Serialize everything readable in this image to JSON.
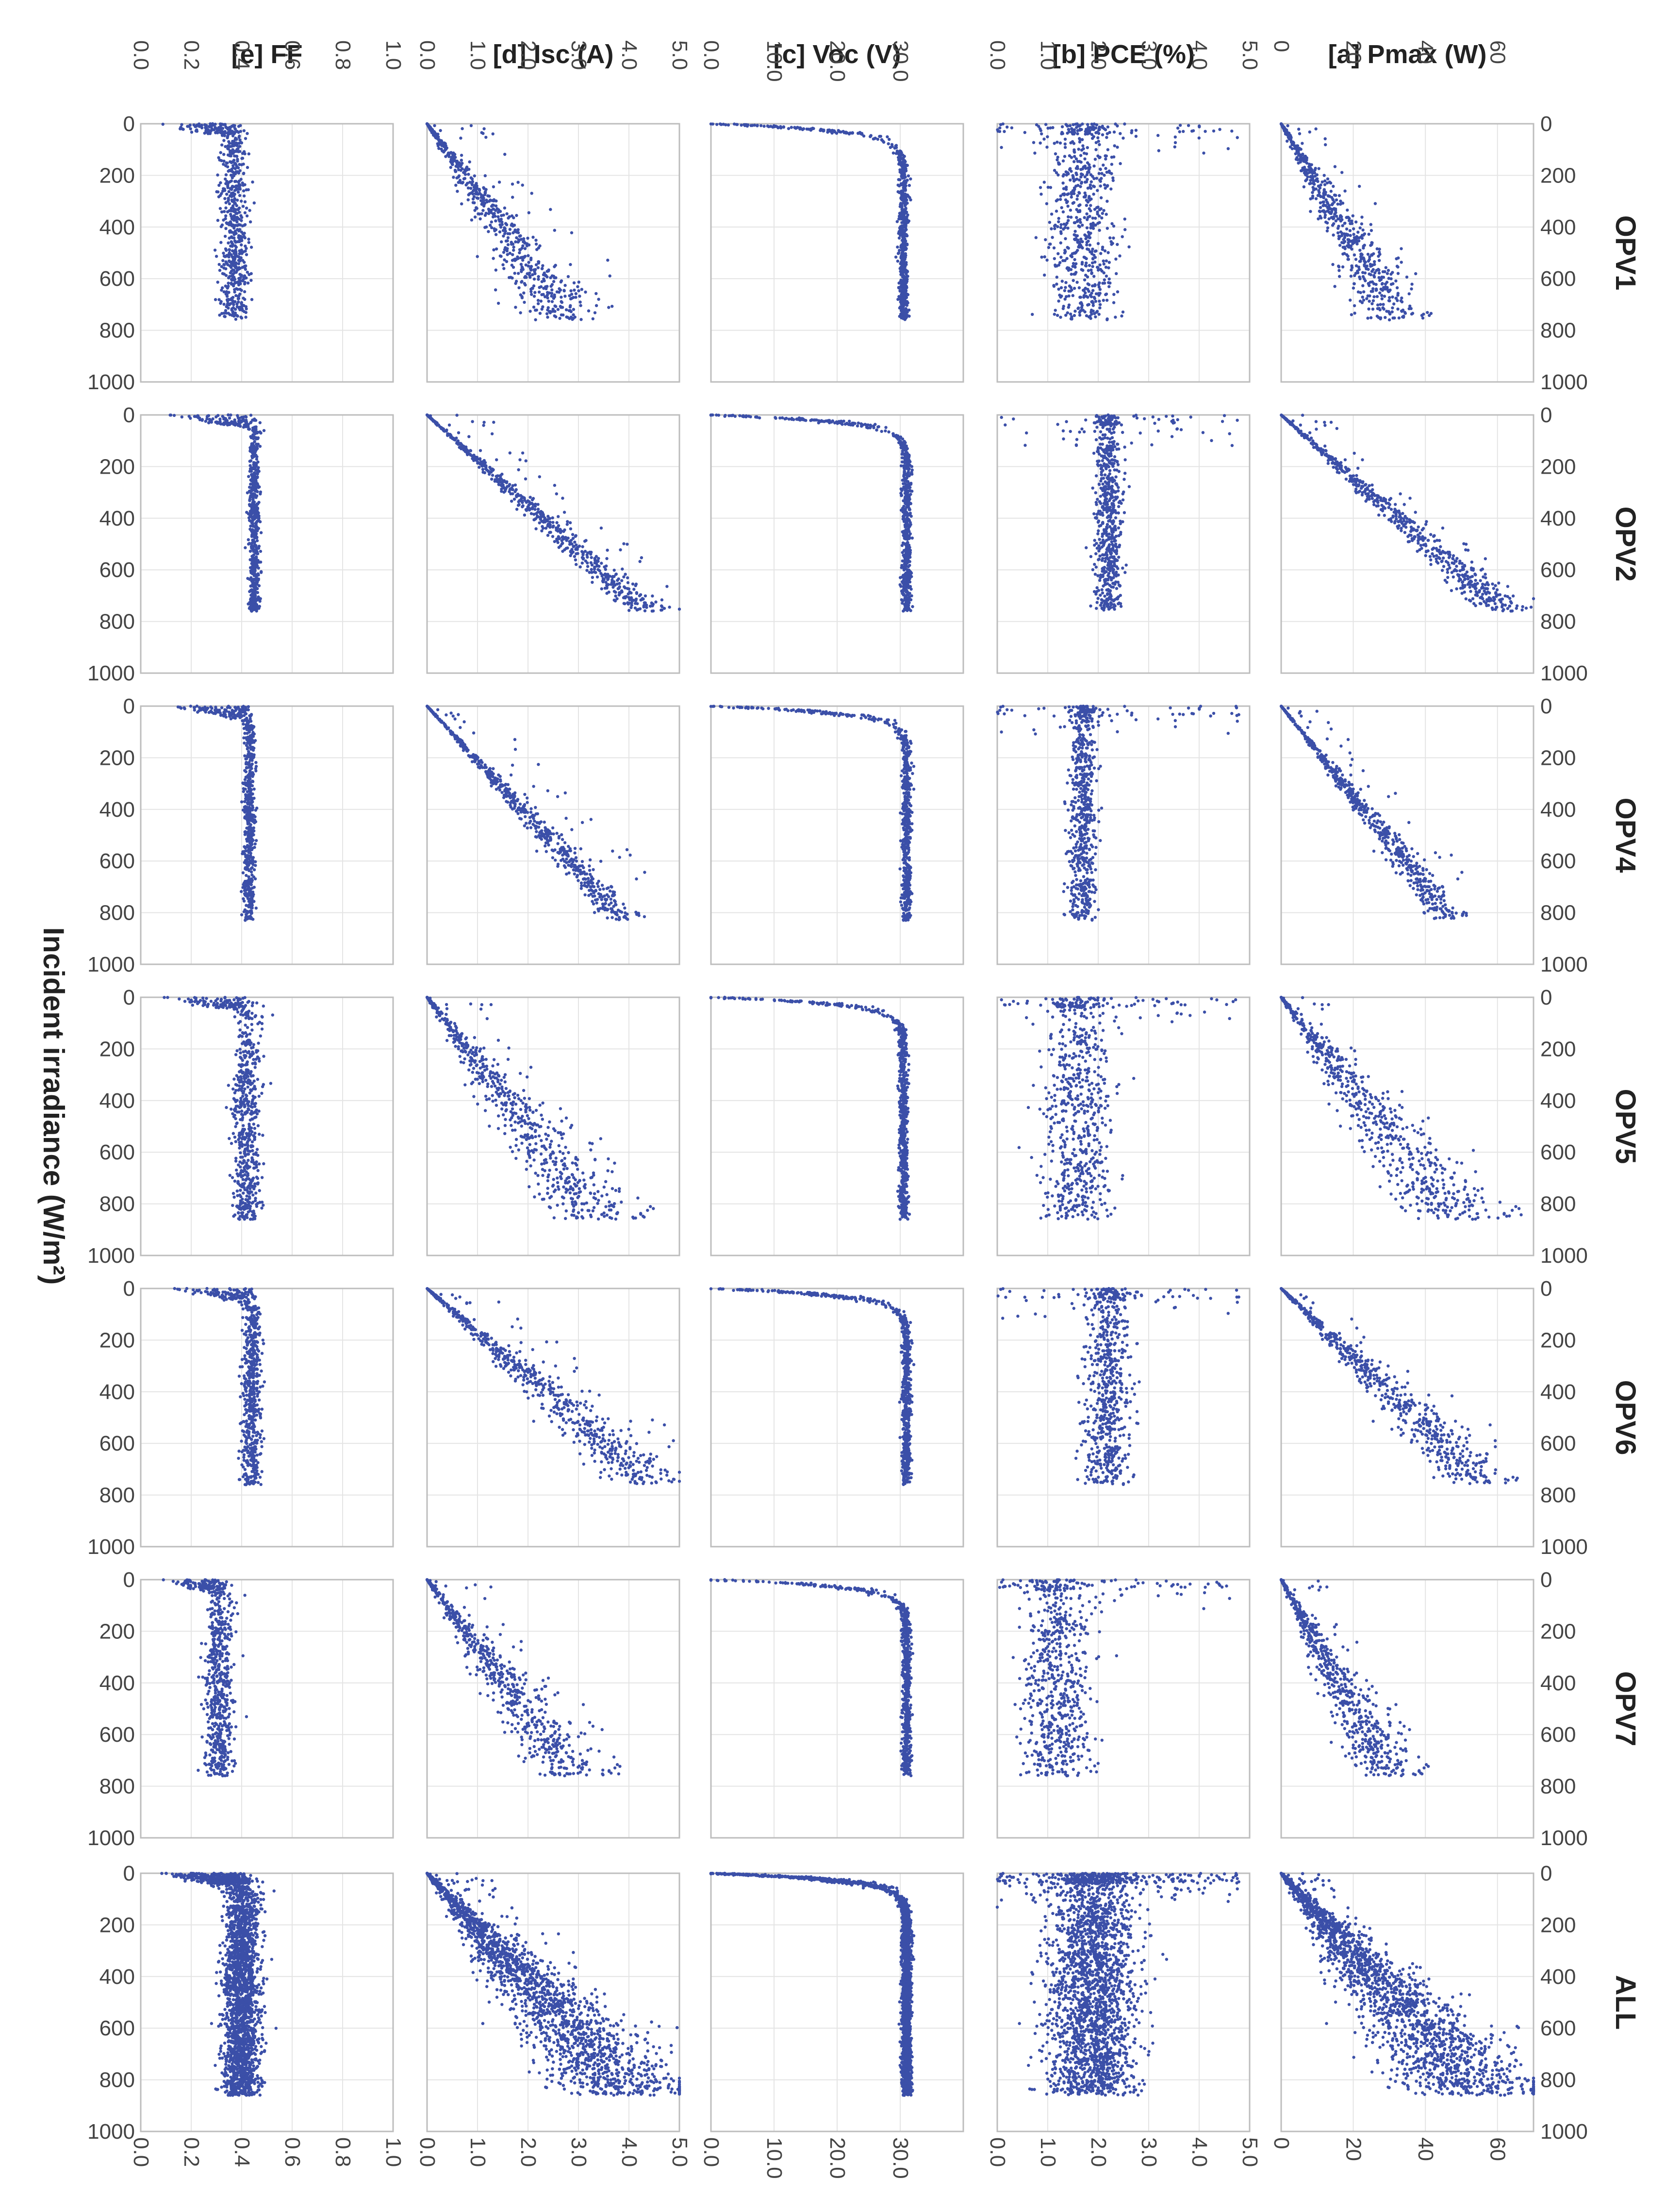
{
  "figure": {
    "y_axis_label": "Incident irradiance (W/m²)",
    "colors": {
      "points": "#3b4fa8",
      "grid": "#e4e4e4",
      "frame": "#bdbdbd"
    }
  },
  "chart_data": {
    "type": "scatter",
    "layout": "grid: rows = modules, columns = parameters; irradiance axis runs downward from 0 to 1000",
    "rows": [
      "OPV1",
      "OPV2",
      "OPV4",
      "OPV5",
      "OPV6",
      "OPV7",
      "ALL"
    ],
    "irradiance_axis": {
      "label": "Incident irradiance (W/m²)",
      "range": [
        0,
        1000
      ],
      "ticks": [
        "0",
        "200",
        "400",
        "600",
        "800",
        "1000"
      ]
    },
    "columns": [
      {
        "key": "ff",
        "title": "[e] FF",
        "range": [
          0,
          1
        ],
        "ticks": [
          "0.0",
          "0.2",
          "0.4",
          "0.6",
          "0.8",
          "1.0"
        ]
      },
      {
        "key": "isc",
        "title": "[d] Isc (A)",
        "range": [
          0,
          5
        ],
        "ticks": [
          "0.0",
          "1.0",
          "2.0",
          "3.0",
          "4.0",
          "5.0"
        ]
      },
      {
        "key": "voc",
        "title": "[c] Voc (V)",
        "range": [
          0,
          40
        ],
        "ticks": [
          "0.0",
          "10.0",
          "20.0",
          "30.0"
        ]
      },
      {
        "key": "pce",
        "title": "[b] PCE (%)",
        "range": [
          0,
          5
        ],
        "ticks": [
          "0.0",
          "1.0",
          "2.0",
          "3.0",
          "4.0",
          "5.0"
        ]
      },
      {
        "key": "pmax",
        "title": "[a] Pmax (W)",
        "range": [
          0,
          70
        ],
        "ticks": [
          "0",
          "20",
          "40",
          "60"
        ]
      }
    ],
    "trends": {
      "OPV1": {
        "ff": 0.37,
        "pmax_at_700": 30,
        "isc_at_700": 2.6,
        "voc_plateau": 30.5,
        "pce_center": 1.7,
        "irr_max": 800,
        "spread": "wide"
      },
      "OPV2": {
        "ff": 0.45,
        "pmax_at_700": 57,
        "isc_at_700": 4.0,
        "voc_plateau": 31.0,
        "pce_center": 2.2,
        "irr_max": 800,
        "spread": "narrow"
      },
      "OPV4": {
        "ff": 0.43,
        "pmax_at_700": 40,
        "isc_at_700": 3.3,
        "voc_plateau": 31.0,
        "pce_center": 1.7,
        "irr_max": 870,
        "spread": "narrow"
      },
      "OPV5": {
        "ff": 0.42,
        "pmax_at_700": 40,
        "isc_at_700": 2.8,
        "voc_plateau": 30.5,
        "pce_center": 1.6,
        "irr_max": 900,
        "spread": "wide"
      },
      "OPV6": {
        "ff": 0.44,
        "pmax_at_700": 52,
        "isc_at_700": 4.1,
        "voc_plateau": 31.0,
        "pce_center": 2.2,
        "irr_max": 800,
        "spread": "medium"
      },
      "OPV7": {
        "ff": 0.31,
        "pmax_at_700": 28,
        "isc_at_700": 2.7,
        "voc_plateau": 31.0,
        "pce_center": 1.2,
        "irr_max": 800,
        "spread": "wide"
      },
      "ALL": {
        "ff": 0.4,
        "pmax_at_700": 45,
        "isc_at_700": 3.3,
        "voc_plateau": 31.0,
        "pce_center": 1.9,
        "irr_max": 900,
        "spread": "dense"
      }
    }
  }
}
